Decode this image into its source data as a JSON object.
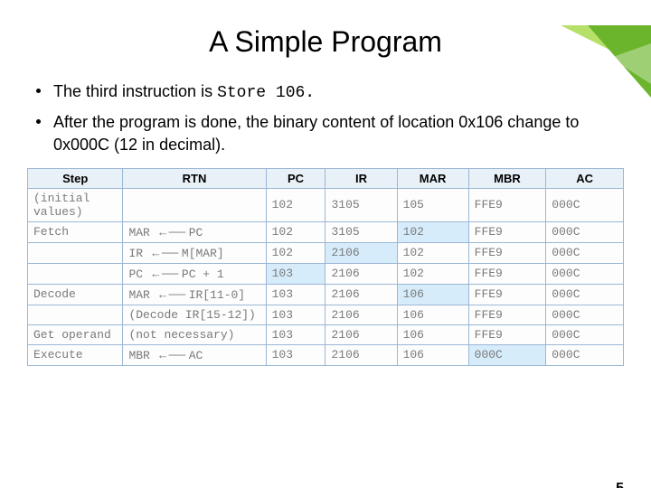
{
  "title": "A Simple Program",
  "bullets": [
    {
      "pre": "The third instruction is ",
      "code": "Store 106.",
      "post": ""
    },
    {
      "pre": "After the program is done, the binary content of location 0x106 change to 0x000C (12 in decimal).",
      "code": "",
      "post": ""
    }
  ],
  "page_number": "5",
  "accent_colors": {
    "light": "#b7e06a",
    "dark": "#6bb52c"
  },
  "table": {
    "headers": [
      "Step",
      "RTN",
      "PC",
      "IR",
      "MAR",
      "MBR",
      "AC"
    ],
    "col_keys": [
      "step",
      "rtn",
      "pc",
      "ir",
      "mar",
      "mbr",
      "ac"
    ],
    "rows": [
      {
        "step": "(initial values)",
        "rtn": "",
        "pc": "102",
        "ir": "3105",
        "mar": "105",
        "mbr": "FFE9",
        "ac": "000C",
        "hl": []
      },
      {
        "step": "Fetch",
        "rtn": "MAR ← PC",
        "pc": "102",
        "ir": "3105",
        "mar": "102",
        "mbr": "FFE9",
        "ac": "000C",
        "hl": [
          "mar"
        ]
      },
      {
        "step": "",
        "rtn": "IR ← M[MAR]",
        "pc": "102",
        "ir": "2106",
        "mar": "102",
        "mbr": "FFE9",
        "ac": "000C",
        "hl": [
          "ir"
        ]
      },
      {
        "step": "",
        "rtn": "PC ← PC + 1",
        "pc": "103",
        "ir": "2106",
        "mar": "102",
        "mbr": "FFE9",
        "ac": "000C",
        "hl": [
          "pc"
        ]
      },
      {
        "step": "Decode",
        "rtn": "MAR ← IR[11-0]",
        "pc": "103",
        "ir": "2106",
        "mar": "106",
        "mbr": "FFE9",
        "ac": "000C",
        "hl": [
          "mar"
        ]
      },
      {
        "step": "",
        "rtn": "(Decode IR[15-12])",
        "pc": "103",
        "ir": "2106",
        "mar": "106",
        "mbr": "FFE9",
        "ac": "000C",
        "hl": []
      },
      {
        "step": "Get operand",
        "rtn": "(not necessary)",
        "pc": "103",
        "ir": "2106",
        "mar": "106",
        "mbr": "FFE9",
        "ac": "000C",
        "hl": []
      },
      {
        "step": "Execute",
        "rtn": "MBR ← AC",
        "pc": "103",
        "ir": "2106",
        "mar": "106",
        "mbr": "000C",
        "ac": "000C",
        "hl": [
          "mbr"
        ]
      }
    ],
    "header_bg": "#e8f0f8",
    "border_color": "#9bb7d4",
    "cell_text_color": "#7a7a7a",
    "highlight_bg": "#d7ecfb"
  }
}
